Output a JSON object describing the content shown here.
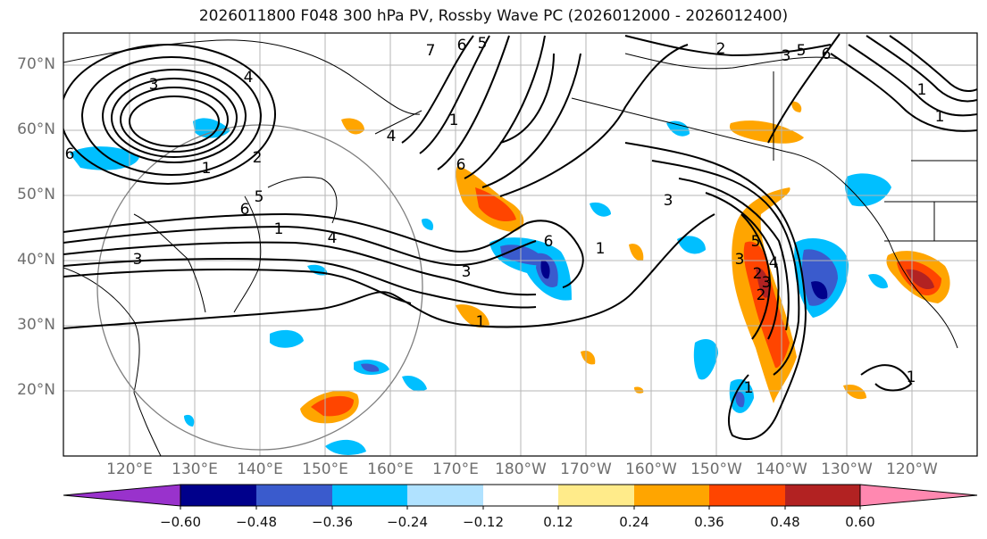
{
  "title": "2026011800 F048 300 hPa PV, Rossby Wave PC (2026012000 - 2026012400)",
  "lat_labels": [
    "70°N",
    "60°N",
    "50°N",
    "40°N",
    "30°N",
    "20°N"
  ],
  "lon_labels": [
    "120°E",
    "130°E",
    "140°E",
    "150°E",
    "160°E",
    "170°E",
    "180°W",
    "170°W",
    "160°W",
    "150°W",
    "140°W",
    "130°W",
    "120°W"
  ],
  "colorbar": {
    "ticks": [
      "−0.60",
      "−0.48",
      "−0.36",
      "−0.24",
      "−0.12",
      "0.12",
      "0.24",
      "0.36",
      "0.48",
      "0.60"
    ],
    "colors": [
      "#9932cc",
      "#00008b",
      "#3a5bcd",
      "#00bfff",
      "#b0e2ff",
      "#ffffff",
      "#ffeb8a",
      "#ffa500",
      "#ff4500",
      "#b22222",
      "#ff88b0"
    ]
  },
  "contour_labels": [
    "3",
    "4",
    "1",
    "2",
    "6",
    "5",
    "7",
    "6",
    "5",
    "2",
    "3",
    "5",
    "6",
    "3",
    "1",
    "6",
    "1",
    "3",
    "6",
    "3",
    "1",
    "1",
    "1",
    "6",
    "5",
    "4",
    "3",
    "2",
    "1",
    "2",
    "3",
    "4",
    "1",
    "4",
    "1"
  ]
}
